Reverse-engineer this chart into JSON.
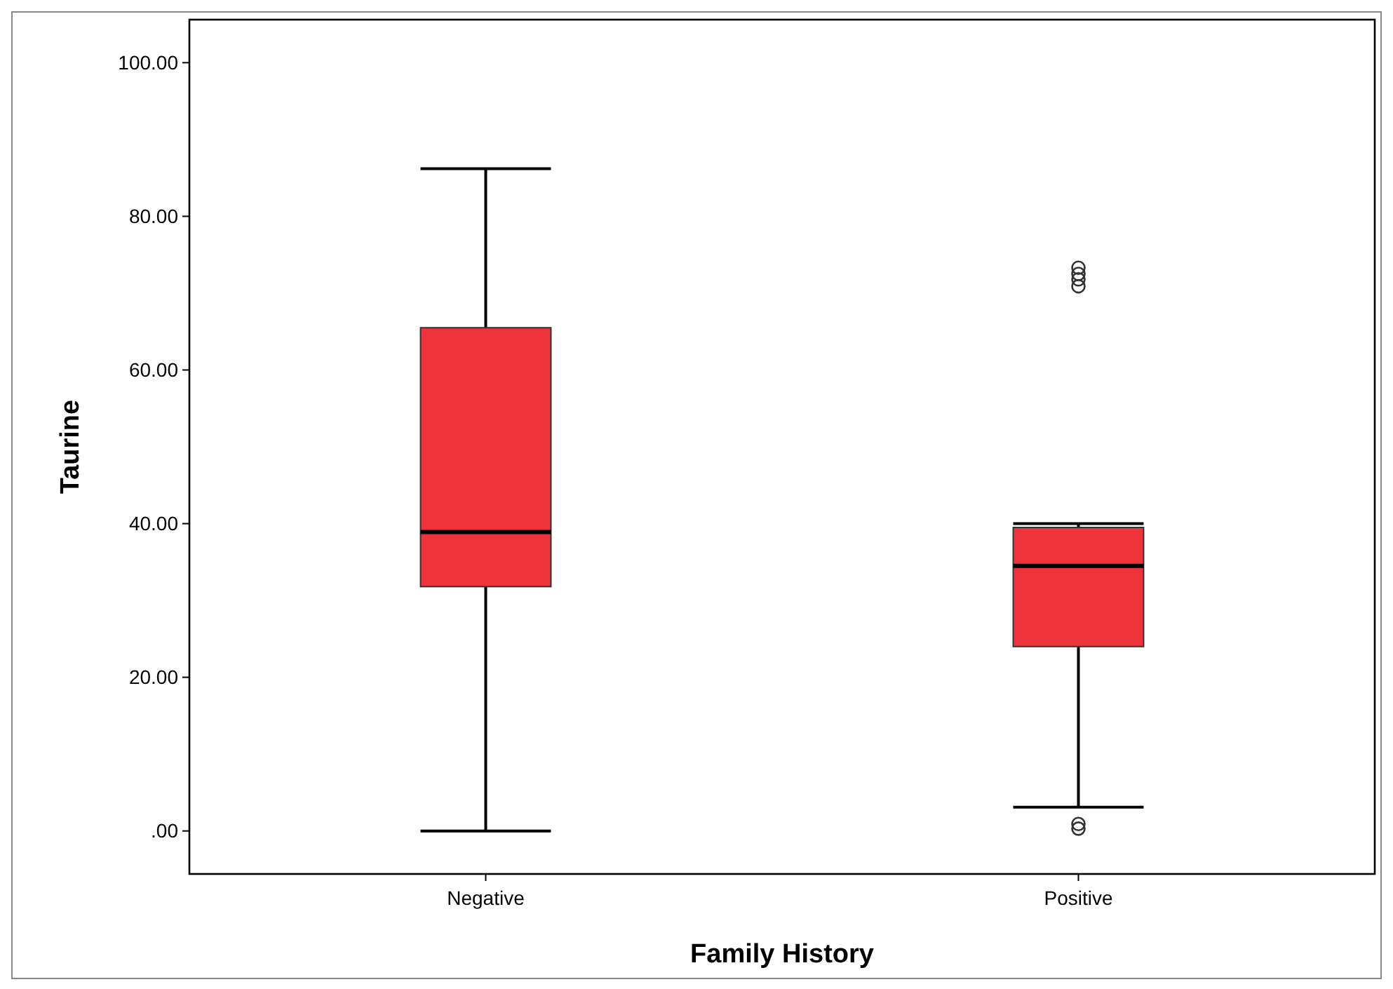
{
  "chart_data": {
    "type": "box",
    "xlabel": "Family History",
    "ylabel": "Taurine",
    "categories": [
      "Negative",
      "Positive"
    ],
    "color": "#ef333c",
    "boxes": [
      {
        "low": 0,
        "q1": 31.8,
        "median": 38.9,
        "q3": 65.5,
        "high": 86.2
      },
      {
        "low": 3.1,
        "q1": 24,
        "median": 34.5,
        "q3": 39.5,
        "high": 40,
        "outliers": [
          73.3,
          72.5,
          71.8,
          70.9,
          0.9,
          0.3
        ]
      }
    ],
    "ylim": [
      -5.6,
      105.6
    ],
    "yticks": [
      {
        "value": 0,
        "label": ".00"
      },
      {
        "value": 20,
        "label": "20.00"
      },
      {
        "value": 40,
        "label": "40.00"
      },
      {
        "value": 60,
        "label": "60.00"
      },
      {
        "value": 80,
        "label": "80.00"
      },
      {
        "value": 100,
        "label": "100.00"
      }
    ],
    "grid": false
  }
}
